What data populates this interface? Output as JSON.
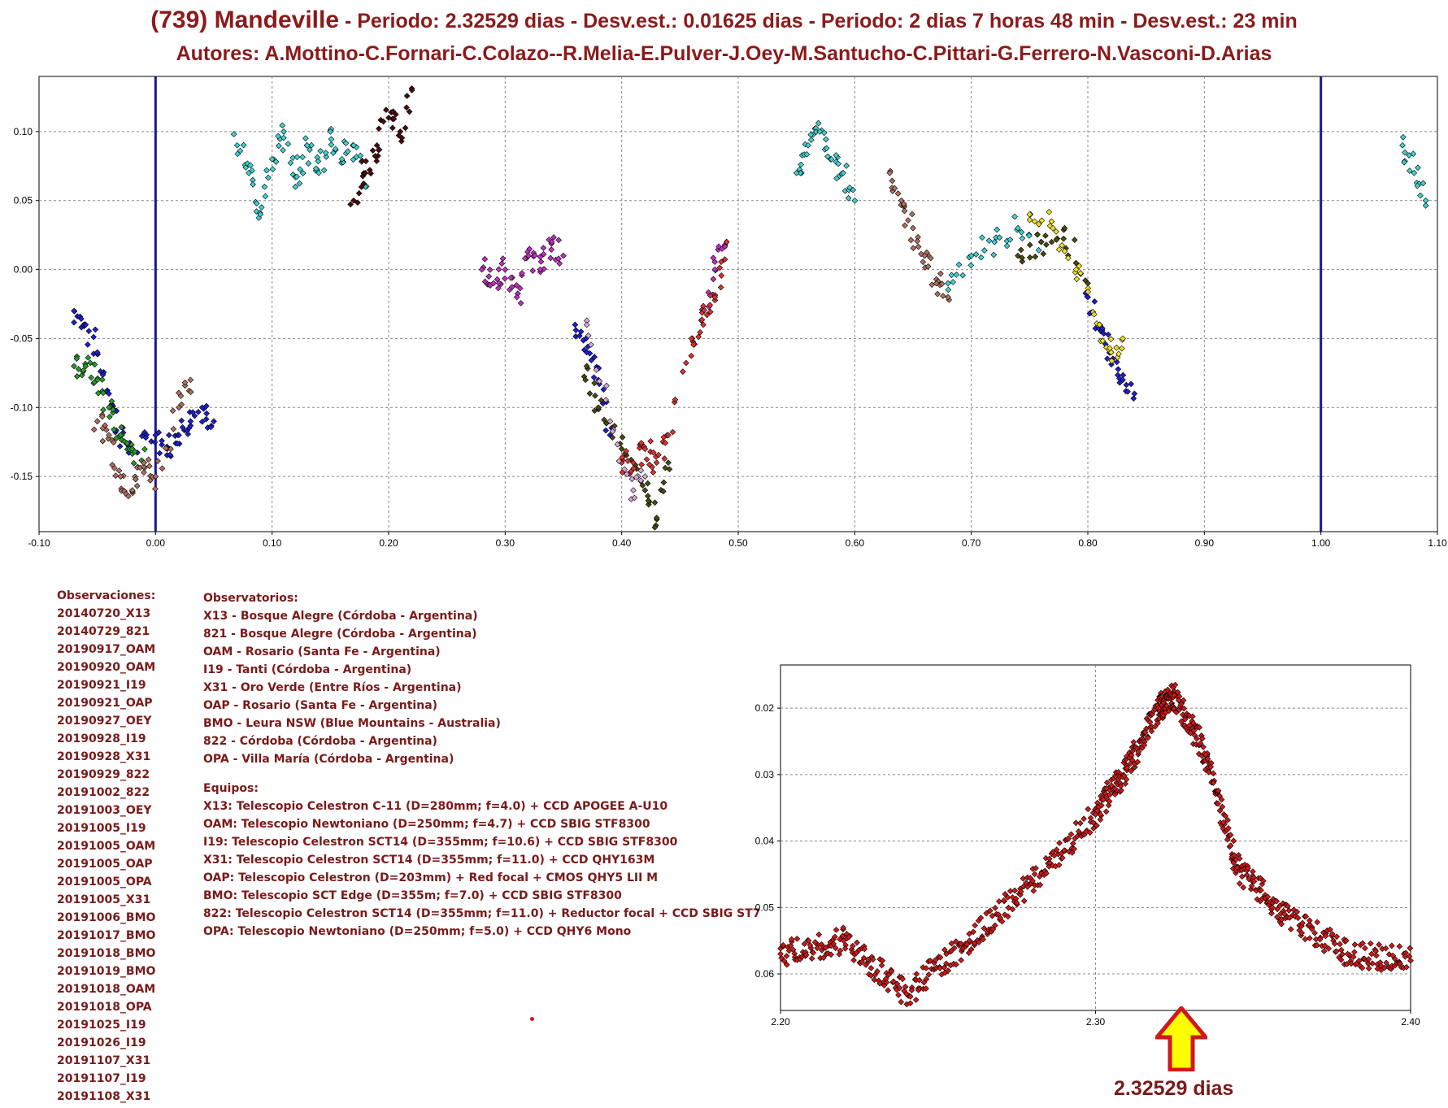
{
  "header": {
    "asteroid": "(739) Mandeville",
    "period_text": " - Periodo: 2.32529 dias - Desv.est.: 0.01625 dias  -  Periodo: 2 dias 7 horas 48 min - Desv.est.: 23 min",
    "authors": "Autores: A.Mottino-C.Fornari-C.Colazo--R.Melia-E.Pulver-J.Oey-M.Santucho-C.Pittari-G.Ferrero-N.Vasconi-D.Arias"
  },
  "observations": {
    "heading": "Observaciones:",
    "items": [
      "20140720_X13",
      "20140729_821",
      "20190917_OAM",
      "20190920_OAM",
      "20190921_I19",
      "20190921_OAP",
      "20190927_OEY",
      "20190928_I19",
      "20190928_X31",
      "20190929_822",
      "20191002_822",
      "20191003_OEY",
      "20191005_I19",
      "20191005_OAM",
      "20191005_OAP",
      "20191005_OPA",
      "20191005_X31",
      "20191006_BMO",
      "20191017_BMO",
      "20191018_BMO",
      "20191019_BMO",
      "20191018_OAM",
      "20191018_OPA",
      "20191025_I19",
      "20191026_I19",
      "20191107_X31",
      "20191107_I19",
      "20191108_X31"
    ]
  },
  "observatories": {
    "heading": "Observatorios:",
    "items": [
      "X13 - Bosque Alegre (Córdoba - Argentina)",
      "821 - Bosque Alegre (Córdoba - Argentina)",
      "OAM - Rosario (Santa Fe - Argentina)",
      "I19 - Tanti (Córdoba - Argentina)",
      "X31 - Oro Verde (Entre Ríos - Argentina)",
      "OAP - Rosario (Santa Fe - Argentina)",
      "BMO - Leura NSW (Blue Mountains - Australia)",
      "822 - Córdoba (Córdoba - Argentina)",
      "OPA - Villa María (Córdoba - Argentina)"
    ]
  },
  "equipment": {
    "heading": "Equipos:",
    "items": [
      "X13: Telescopio Celestron C-11 (D=280mm; f=4.0) + CCD APOGEE A-U10",
      "OAM: Telescopio Newtoniano (D=250mm; f=4.7) + CCD SBIG STF8300",
      "I19: Telescopio Celestron SCT14 (D=355mm; f=10.6) + CCD SBIG STF8300",
      "X31: Telescopio Celestron SCT14 (D=355mm; f=11.0) + CCD QHY163M",
      "OAP: Telescopio Celestron (D=203mm) + Red focal + CMOS QHY5 LII M",
      "BMO: Telescopio SCT Edge (D=355m; f=7.0) + CCD SBIG STF8300",
      "822: Telescopio Celestron SCT14 (D=355mm; f=11.0) + Reductor focal + CCD SBIG ST7",
      "OPA: Telescopio Newtoniano (D=250mm; f=5.0) + CCD QHY6 Mono"
    ]
  },
  "annotation": "2.32529 dias",
  "colors": {
    "title": "#8b1a1a",
    "text": "#7a1a1a",
    "phase_line": "#1a1a8c",
    "period_points": "#d01818",
    "arrow_fill": "#ffff00",
    "arrow_stroke": "#d0181c"
  },
  "chart_data": [
    {
      "type": "scatter",
      "title": "",
      "xlabel": "",
      "ylabel": "",
      "xlim": [
        -0.1,
        1.1
      ],
      "ylim": [
        0.14,
        -0.19
      ],
      "y_inverted": true,
      "grid": true,
      "x_ticks": [
        "-0.10",
        "0.00",
        "0.10",
        "0.20",
        "0.30",
        "0.40",
        "0.50",
        "0.60",
        "0.70",
        "0.80",
        "0.90",
        "1.00",
        "1.10"
      ],
      "y_ticks": [
        "-0.15",
        "-0.10",
        "-0.05",
        "0.00",
        "0.05",
        "0.10"
      ],
      "vertical_lines": [
        0.0,
        1.0
      ],
      "series": [
        {
          "color": "#1f1fd0",
          "points": [
            [
              -0.07,
              -0.03
            ],
            [
              -0.06,
              -0.04
            ],
            [
              -0.05,
              -0.06
            ],
            [
              -0.04,
              -0.09
            ],
            [
              -0.03,
              -0.12
            ],
            [
              -0.02,
              -0.13
            ],
            [
              0.0,
              -0.12
            ],
            [
              0.01,
              -0.13
            ],
            [
              0.02,
              -0.12
            ],
            [
              0.03,
              -0.11
            ],
            [
              0.04,
              -0.1
            ],
            [
              0.05,
              -0.11
            ],
            [
              0.36,
              -0.04
            ],
            [
              0.37,
              -0.06
            ],
            [
              0.38,
              -0.08
            ],
            [
              0.39,
              -0.12
            ],
            [
              0.8,
              -0.02
            ],
            [
              0.81,
              -0.04
            ],
            [
              0.82,
              -0.06
            ],
            [
              0.83,
              -0.08
            ],
            [
              0.84,
              -0.09
            ]
          ]
        },
        {
          "color": "#2a9a2a",
          "points": [
            [
              -0.07,
              -0.07
            ],
            [
              -0.06,
              -0.07
            ],
            [
              -0.05,
              -0.08
            ],
            [
              -0.04,
              -0.1
            ],
            [
              -0.03,
              -0.12
            ],
            [
              -0.02,
              -0.13
            ],
            [
              -0.01,
              -0.14
            ]
          ]
        },
        {
          "color": "#b07060",
          "points": [
            [
              -0.05,
              -0.11
            ],
            [
              -0.04,
              -0.12
            ],
            [
              -0.03,
              -0.15
            ],
            [
              -0.02,
              -0.16
            ],
            [
              -0.01,
              -0.14
            ],
            [
              0.0,
              -0.15
            ],
            [
              0.02,
              -0.1
            ],
            [
              0.03,
              -0.08
            ],
            [
              0.63,
              0.07
            ],
            [
              0.64,
              0.05
            ],
            [
              0.65,
              0.03
            ],
            [
              0.66,
              0.01
            ],
            [
              0.67,
              -0.01
            ],
            [
              0.68,
              -0.02
            ]
          ]
        },
        {
          "color": "#40d0d0",
          "points": [
            [
              0.07,
              0.09
            ],
            [
              0.08,
              0.07
            ],
            [
              0.09,
              0.04
            ],
            [
              0.1,
              0.08
            ],
            [
              0.11,
              0.1
            ],
            [
              0.12,
              0.06
            ],
            [
              0.13,
              0.09
            ],
            [
              0.14,
              0.07
            ],
            [
              0.15,
              0.1
            ],
            [
              0.16,
              0.08
            ],
            [
              0.17,
              0.09
            ],
            [
              0.18,
              0.06
            ],
            [
              0.55,
              0.07
            ],
            [
              0.56,
              0.09
            ],
            [
              0.57,
              0.1
            ],
            [
              0.58,
              0.08
            ],
            [
              0.59,
              0.07
            ],
            [
              0.6,
              0.05
            ],
            [
              0.68,
              -0.01
            ],
            [
              0.7,
              0.01
            ],
            [
              0.72,
              0.02
            ],
            [
              0.74,
              0.03
            ],
            [
              0.76,
              0.02
            ],
            [
              1.07,
              0.09
            ],
            [
              1.08,
              0.07
            ],
            [
              1.09,
              0.05
            ]
          ]
        },
        {
          "color": "#4a0d0d",
          "points": [
            [
              0.17,
              0.05
            ],
            [
              0.18,
              0.07
            ],
            [
              0.19,
              0.09
            ],
            [
              0.2,
              0.11
            ],
            [
              0.21,
              0.1
            ],
            [
              0.22,
              0.13
            ]
          ]
        },
        {
          "color": "#c030c0",
          "points": [
            [
              0.28,
              0.0
            ],
            [
              0.29,
              -0.01
            ],
            [
              0.3,
              0.0
            ],
            [
              0.31,
              -0.02
            ],
            [
              0.32,
              0.01
            ],
            [
              0.33,
              0.0
            ],
            [
              0.34,
              0.02
            ],
            [
              0.35,
              0.01
            ],
            [
              0.47,
              -0.03
            ],
            [
              0.48,
              0.0
            ],
            [
              0.49,
              0.02
            ]
          ]
        },
        {
          "color": "#4a4a10",
          "points": [
            [
              0.37,
              -0.07
            ],
            [
              0.38,
              -0.1
            ],
            [
              0.4,
              -0.13
            ],
            [
              0.42,
              -0.16
            ],
            [
              0.43,
              -0.18
            ],
            [
              0.44,
              -0.14
            ],
            [
              0.74,
              0.01
            ],
            [
              0.76,
              0.02
            ],
            [
              0.78,
              0.03
            ],
            [
              0.8,
              -0.01
            ]
          ]
        },
        {
          "color": "#e03030",
          "points": [
            [
              0.4,
              -0.14
            ],
            [
              0.41,
              -0.14
            ],
            [
              0.42,
              -0.13
            ],
            [
              0.43,
              -0.14
            ],
            [
              0.44,
              -0.12
            ],
            [
              0.46,
              -0.05
            ],
            [
              0.47,
              -0.04
            ],
            [
              0.48,
              -0.02
            ],
            [
              0.49,
              0.02
            ]
          ]
        },
        {
          "color": "#d8a8d8",
          "points": [
            [
              0.37,
              -0.04
            ],
            [
              0.39,
              -0.11
            ],
            [
              0.41,
              -0.16
            ],
            [
              0.42,
              -0.15
            ]
          ]
        },
        {
          "color": "#f0e020",
          "points": [
            [
              0.75,
              0.04
            ],
            [
              0.77,
              0.03
            ],
            [
              0.79,
              0.0
            ],
            [
              0.81,
              -0.04
            ],
            [
              0.82,
              -0.06
            ],
            [
              0.83,
              -0.05
            ]
          ]
        }
      ]
    },
    {
      "type": "scatter",
      "title": "",
      "xlabel": "",
      "ylabel": "",
      "xlim": [
        2.2,
        2.4
      ],
      "ylim": [
        0.0135,
        0.0655
      ],
      "grid": true,
      "x_ticks": [
        "2.20",
        "2.30",
        "2.40"
      ],
      "y_ticks": [
        "0.06",
        "0.05",
        "0.04",
        "0.03",
        "0.02"
      ],
      "series": [
        {
          "color": "#d01818",
          "points": [
            [
              2.2,
              0.057
            ],
            [
              2.22,
              0.055
            ],
            [
              2.24,
              0.063
            ],
            [
              2.26,
              0.055
            ],
            [
              2.28,
              0.046
            ],
            [
              2.3,
              0.036
            ],
            [
              2.31,
              0.029
            ],
            [
              2.32,
              0.02
            ],
            [
              2.325,
              0.018
            ],
            [
              2.335,
              0.027
            ],
            [
              2.345,
              0.044
            ],
            [
              2.36,
              0.051
            ],
            [
              2.38,
              0.057
            ],
            [
              2.4,
              0.058
            ]
          ]
        }
      ]
    }
  ]
}
